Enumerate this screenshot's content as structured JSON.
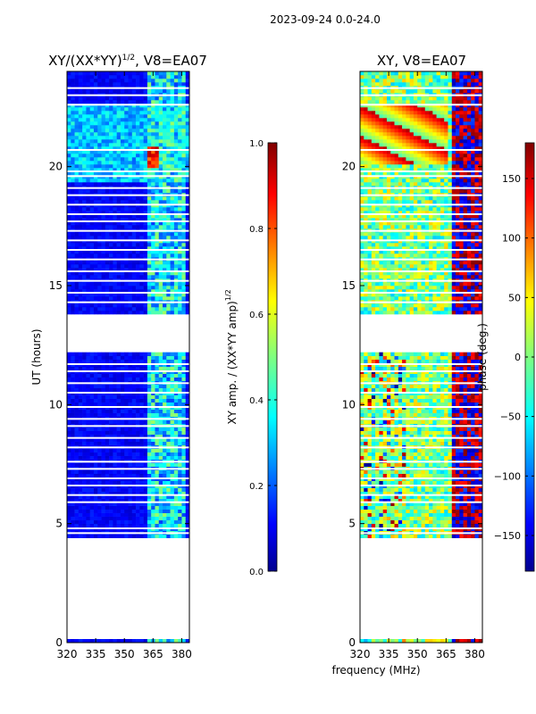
{
  "suptitle": "2023-09-24 0.0-24.0",
  "chart_data": [
    {
      "type": "heatmap",
      "panel": "left",
      "title": "XY/(XX*YY)^{1/2}, V8=EA07",
      "title_main": "XY/(XX*YY)",
      "title_sup": "1/2",
      "title_tail": ", V8=EA07",
      "ylabel": "UT (hours)",
      "xlim": [
        320,
        384
      ],
      "ylim": [
        0,
        24
      ],
      "xticks": [
        320,
        335,
        350,
        365,
        380
      ],
      "yticks": [
        0,
        5,
        10,
        15,
        20
      ],
      "colorbar": {
        "label_main": "XY amp. / (XX*YY amp)",
        "label_sup": "1/2",
        "range": [
          0.0,
          1.0
        ],
        "ticks": [
          "0.0",
          "0.2",
          "0.4",
          "0.6",
          "0.8",
          "1.0"
        ],
        "tick_values": [
          0.0,
          0.2,
          0.4,
          0.6,
          0.8,
          1.0
        ]
      }
    },
    {
      "type": "heatmap",
      "panel": "right",
      "title": "XY, V8=EA07",
      "xlabel": "frequency (MHz)",
      "xlim": [
        320,
        384
      ],
      "ylim": [
        0,
        24
      ],
      "xticks": [
        320,
        335,
        350,
        365,
        380
      ],
      "yticks": [
        0,
        5,
        10,
        15,
        20
      ],
      "colorbar": {
        "label": "phase (deg.)",
        "range": [
          -180,
          180
        ],
        "ticks": [
          "−150",
          "−100",
          "−50",
          "0",
          "50",
          "100",
          "150"
        ],
        "tick_values": [
          -150,
          -100,
          -50,
          0,
          50,
          100,
          150
        ]
      }
    }
  ],
  "data_coverage_hours": {
    "segments": [
      [
        0.0,
        0.15
      ],
      [
        4.4,
        12.2
      ],
      [
        13.8,
        24.0
      ]
    ],
    "row_gaps": [
      4.6,
      4.8,
      5.9,
      6.2,
      6.6,
      6.9,
      7.3,
      7.6,
      8.2,
      8.6,
      9.1,
      9.4,
      9.9,
      10.5,
      10.9,
      11.4,
      11.7,
      14.3,
      14.7,
      15.2,
      15.6,
      16.1,
      16.5,
      16.9,
      17.3,
      17.7,
      18.0,
      18.4,
      18.8,
      19.1,
      19.6,
      19.8,
      20.7,
      22.6,
      23.0,
      23.3
    ]
  }
}
